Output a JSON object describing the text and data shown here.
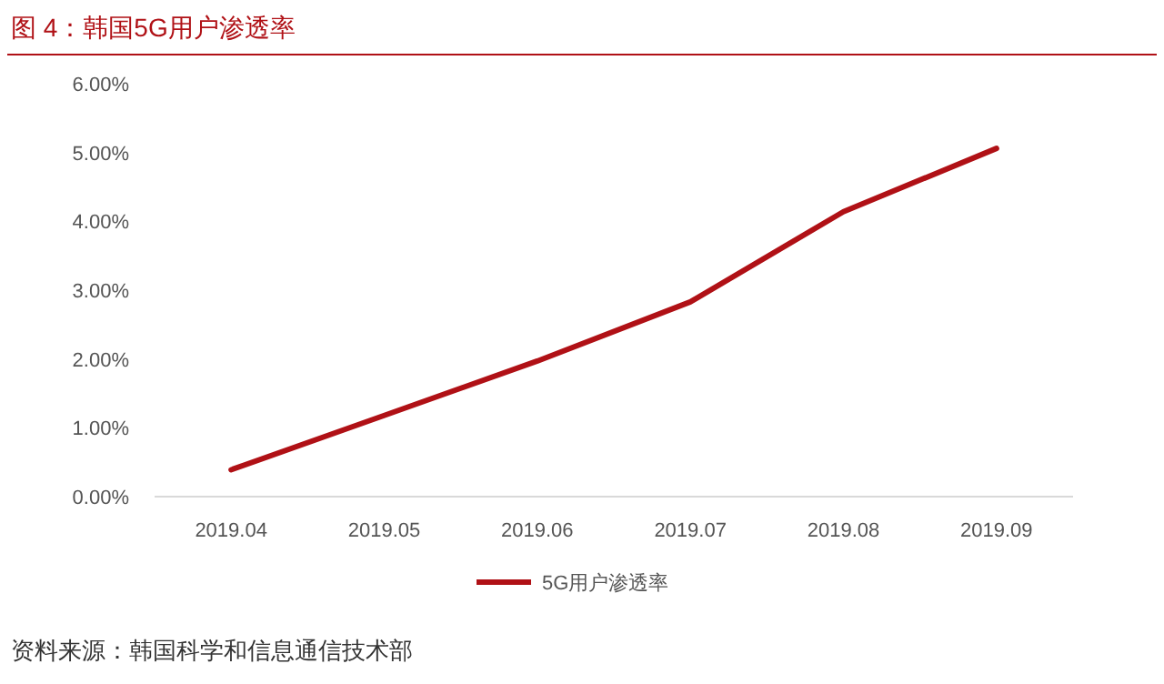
{
  "chart_data": {
    "type": "line",
    "title": "图 4：韩国5G用户渗透率",
    "categories": [
      "2019.04",
      "2019.05",
      "2019.06",
      "2019.07",
      "2019.08",
      "2019.09"
    ],
    "series": [
      {
        "name": "5G用户渗透率",
        "color": "#b01116",
        "values": [
          0.39,
          1.18,
          1.97,
          2.83,
          4.14,
          5.06
        ]
      }
    ],
    "ylim": [
      0,
      6
    ],
    "yticks": [
      {
        "value": 0,
        "label": "0.00%"
      },
      {
        "value": 1,
        "label": "1.00%"
      },
      {
        "value": 2,
        "label": "2.00%"
      },
      {
        "value": 3,
        "label": "3.00%"
      },
      {
        "value": 4,
        "label": "4.00%"
      },
      {
        "value": 5,
        "label": "5.00%"
      },
      {
        "value": 6,
        "label": "6.00%"
      }
    ],
    "grid": false,
    "legend": "bottom",
    "marker": "none",
    "line_style": "solid",
    "annotations": [
      "资料来源：韩国科学和信息通信技术部"
    ]
  }
}
